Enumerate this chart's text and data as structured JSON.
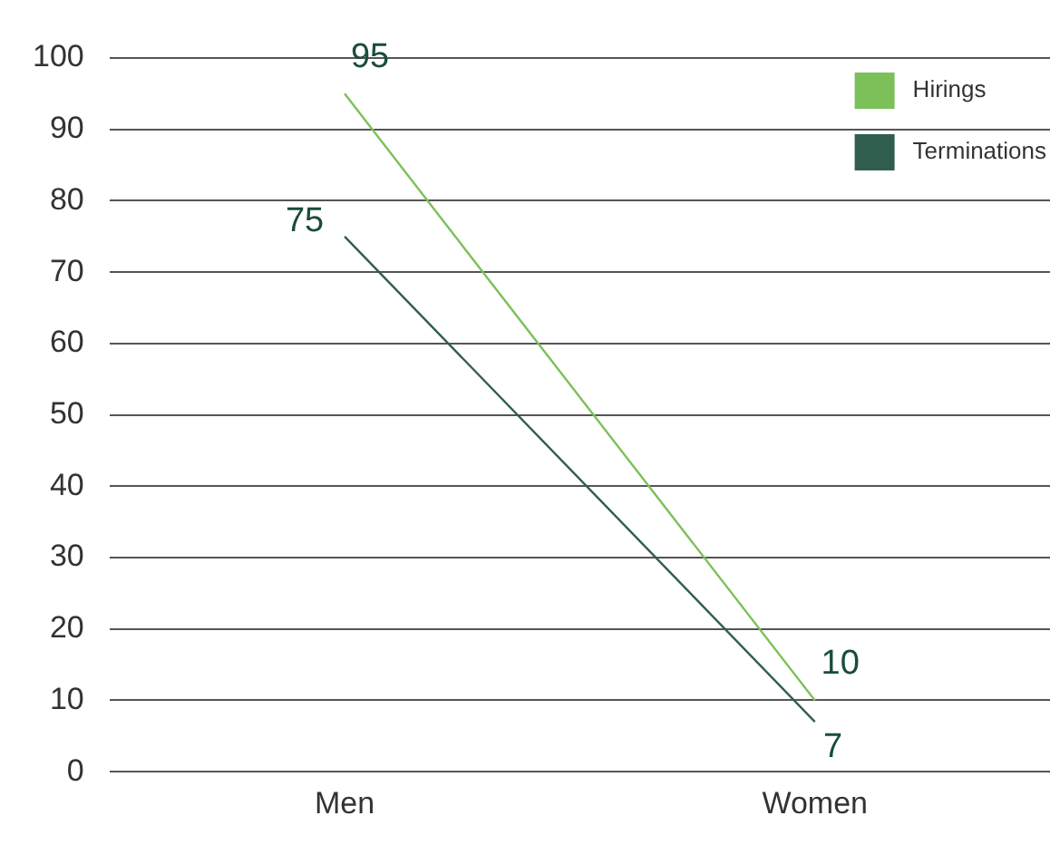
{
  "chart_data": {
    "type": "line",
    "categories": [
      "Men",
      "Women"
    ],
    "series": [
      {
        "name": "Hirings",
        "color": "#7cc05a",
        "values": [
          95,
          10
        ]
      },
      {
        "name": "Terminations",
        "color": "#2f5e4e",
        "values": [
          75,
          7
        ]
      }
    ],
    "ylim": [
      0,
      100
    ],
    "yticks": [
      0,
      10,
      20,
      30,
      40,
      50,
      60,
      70,
      80,
      90,
      100
    ],
    "grid": "y",
    "legend": "top right",
    "data_labels": true,
    "marker": "none"
  }
}
